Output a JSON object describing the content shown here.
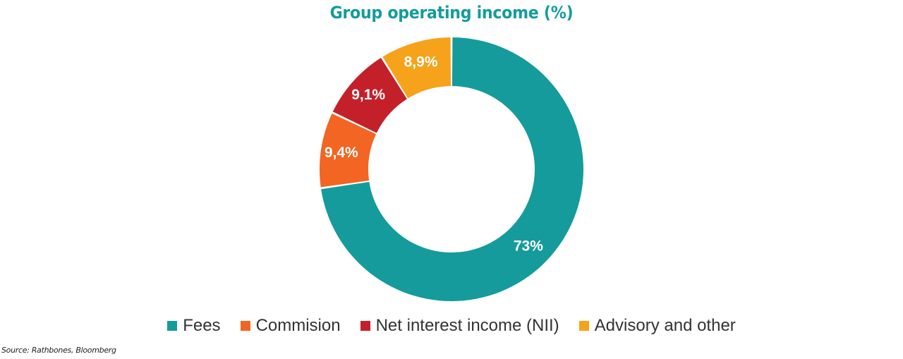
{
  "chart_data": {
    "type": "pie",
    "title": "Group operating income (%)",
    "slices": [
      {
        "name": "Fees",
        "value": 73,
        "label": "73%",
        "color": "#159b9c"
      },
      {
        "name": "Commision",
        "value": 9.4,
        "label": "9,4%",
        "color": "#f26522"
      },
      {
        "name": "Net interest income (NII)",
        "value": 9.1,
        "label": "9,1%",
        "color": "#c4202a"
      },
      {
        "name": "Advisory and other",
        "value": 8.9,
        "label": "8,9%",
        "color": "#f6a21b"
      }
    ],
    "legend_position": "bottom"
  },
  "source": "Source: Rathbones, Bloomberg"
}
